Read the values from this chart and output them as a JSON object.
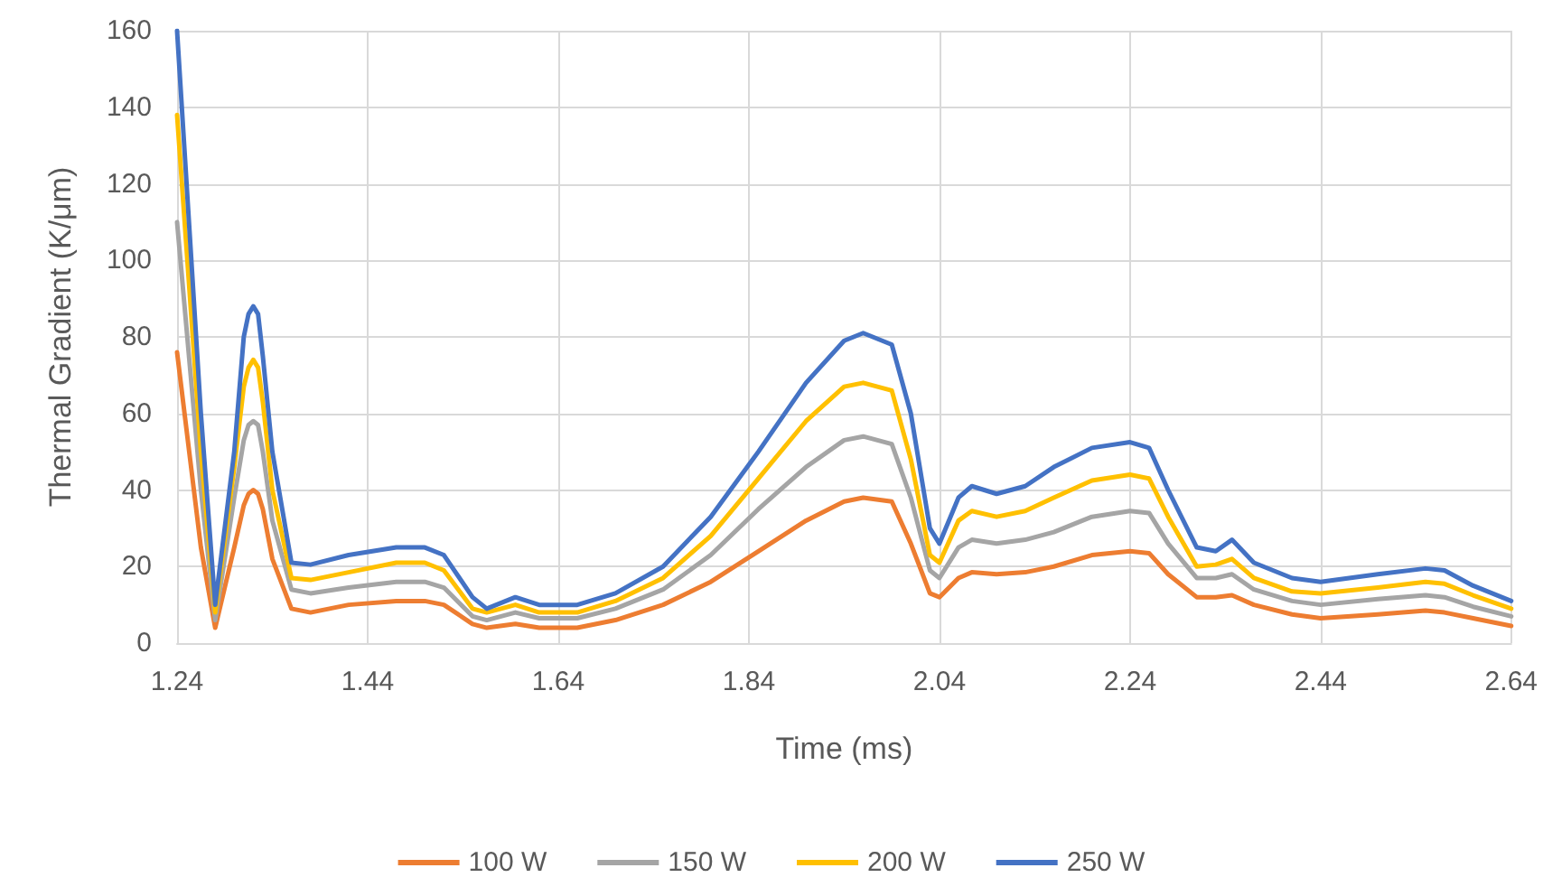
{
  "chart_data": {
    "type": "line",
    "xlabel": "Time (ms)",
    "ylabel": "Thermal Gradient (K/μm)",
    "x": [
      1.24,
      1.265,
      1.28,
      1.3,
      1.31,
      1.315,
      1.32,
      1.325,
      1.33,
      1.34,
      1.36,
      1.38,
      1.42,
      1.47,
      1.5,
      1.52,
      1.55,
      1.565,
      1.595,
      1.62,
      1.66,
      1.7,
      1.75,
      1.8,
      1.85,
      1.9,
      1.94,
      1.96,
      1.99,
      2.01,
      2.03,
      2.04,
      2.06,
      2.074,
      2.1,
      2.13,
      2.16,
      2.2,
      2.24,
      2.26,
      2.28,
      2.31,
      2.33,
      2.347,
      2.37,
      2.41,
      2.44,
      2.5,
      2.55,
      2.57,
      2.6,
      2.64
    ],
    "series": [
      {
        "name": "100 W",
        "color": "#ed7d31",
        "values": [
          76,
          25,
          4,
          25,
          36,
          39,
          40,
          39,
          35,
          22,
          9,
          8,
          10,
          11,
          11,
          10,
          5,
          4,
          5,
          4,
          4,
          6,
          10,
          16,
          24,
          32,
          37,
          38,
          37,
          26,
          13,
          12,
          17,
          18.5,
          18,
          18.5,
          20,
          23,
          24,
          23.5,
          18,
          12,
          12,
          12.5,
          10,
          7.5,
          6.5,
          7.5,
          8.5,
          8,
          6.5,
          4.5
        ]
      },
      {
        "name": "150 W",
        "color": "#a5a5a5",
        "values": [
          110,
          40,
          6,
          38,
          53,
          57,
          58,
          57,
          50,
          32,
          14,
          13,
          14.5,
          16,
          16,
          14.5,
          7,
          6,
          8,
          6.5,
          6.5,
          9,
          14,
          23,
          35,
          46,
          53,
          54,
          52,
          38,
          19,
          17,
          25,
          27,
          26,
          27,
          29,
          33,
          34.5,
          34,
          26,
          17,
          17,
          18,
          14,
          11,
          10,
          11.5,
          12.5,
          12,
          9.5,
          7
        ]
      },
      {
        "name": "200 W",
        "color": "#ffc000",
        "values": [
          138,
          50,
          8,
          46,
          67,
          72,
          74,
          72,
          63,
          40,
          17,
          16.5,
          18.5,
          21,
          21,
          19,
          9,
          8,
          10,
          8,
          8,
          11,
          17,
          28,
          43,
          58,
          67,
          68,
          66,
          48,
          23,
          21,
          32,
          34.5,
          33,
          34.5,
          38,
          42.5,
          44,
          43,
          33,
          20,
          20.5,
          22,
          17,
          13.5,
          13,
          14.5,
          16,
          15.5,
          12.5,
          9
        ]
      },
      {
        "name": "250 W",
        "color": "#4472c4",
        "values": [
          160,
          60,
          10,
          50,
          80,
          86,
          88,
          86,
          75,
          50,
          21,
          20.5,
          23,
          25,
          25,
          23,
          12,
          9,
          12,
          10,
          10,
          13,
          20,
          33,
          50,
          68,
          79,
          81,
          78,
          60,
          30,
          26,
          38,
          41,
          39,
          41,
          46,
          51,
          52.5,
          51,
          40,
          25,
          24,
          27,
          21,
          17,
          16,
          18,
          19.5,
          19,
          15,
          11
        ]
      }
    ],
    "xlim": [
      1.24,
      2.64
    ],
    "xticks": [
      1.24,
      1.44,
      1.64,
      1.84,
      2.04,
      2.24,
      2.44,
      2.64
    ],
    "ylim": [
      0,
      160
    ],
    "yticks": [
      0,
      20,
      40,
      60,
      80,
      100,
      120,
      140,
      160
    ],
    "grid": true,
    "legend": "bottom",
    "marker": "none",
    "line_style": "solid"
  }
}
